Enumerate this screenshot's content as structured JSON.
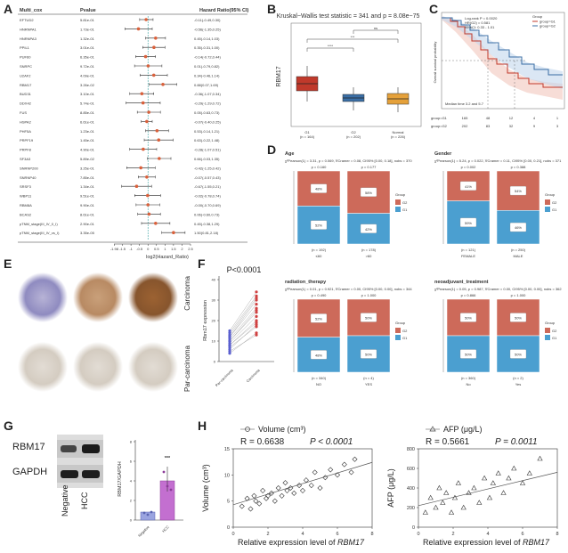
{
  "panels": {
    "A": "A",
    "B": "B",
    "C": "C",
    "D": "D",
    "E": "E",
    "F": "F",
    "G": "G",
    "H": "H"
  },
  "forest": {
    "col_gene": "Multi_cox",
    "col_p": "Pvalue",
    "col_hr": "Hazard Ratio(95% CI)",
    "xlabel": "log2(Hazard_Ratio)",
    "ticks": [
      "-1.98",
      "-1.5",
      "-1",
      "-0.5",
      "0",
      "0.5",
      "1",
      "1.5",
      "2",
      "2.5"
    ],
    "rows": [
      {
        "gene": "EFTUD2",
        "p": "5.81e-01",
        "hr": "-0.11(-0.49,0.30)"
      },
      {
        "gene": "HNRNPA1",
        "p": "1.73e-01",
        "hr": "-0.56(-1.35,0.25)"
      },
      {
        "gene": "HNRNPA3",
        "p": "1.32e-01",
        "hr": "0.45(-0.14,1.03)"
      },
      {
        "gene": "PPIL1",
        "p": "3.01e-01",
        "hr": "0.35(-0.31,1.00)"
      },
      {
        "gene": "PUF60",
        "p": "6.35e-01",
        "hr": "-0.14(-0.72,0.44)"
      },
      {
        "gene": "SNRPC",
        "p": "9.72e-01",
        "hr": "0.01(-0.79,0.82)"
      },
      {
        "gene": "U2AF2",
        "p": "4.09e-01",
        "hr": "0.34(-0.46,1.14)"
      },
      {
        "gene": "RBM17",
        "p": "3.26e-02",
        "hr": "0.88(0.07,1.69)"
      },
      {
        "gene": "BUD31",
        "p": "3.10e-01",
        "hr": "-0.36(-1.07,0.34)"
      },
      {
        "gene": "DDX42",
        "p": "5.74e-01",
        "hr": "-0.29(-1.29,0.72)"
      },
      {
        "gene": "FUS",
        "p": "8.85e-01",
        "hr": "0.05(-0.63,0.73)"
      },
      {
        "gene": "HSPA2",
        "p": "6.61e-01",
        "hr": "-0.07(-0.40,0.25)"
      },
      {
        "gene": "PHF5A",
        "p": "1.23e-01",
        "hr": "0.53(-0.14,1.21)"
      },
      {
        "gene": "PRPF19",
        "p": "1.45e-01",
        "hr": "0.63(-0.22,1.48)"
      },
      {
        "gene": "PRPF8",
        "p": "4.90e-01",
        "hr": "-0.28(-1.07,0.51)"
      },
      {
        "gene": "SF3A3",
        "p": "5.89e-02",
        "hr": "0.66(-0.03,1.35)"
      },
      {
        "gene": "SNRNP200",
        "p": "3.25e-01",
        "hr": "-0.42(-1.25,0.42)"
      },
      {
        "gene": "SNRNP40",
        "p": "7.85e-01",
        "hr": "-0.07(-0.57,0.43)"
      },
      {
        "gene": "SRSF3",
        "p": "1.34e-01",
        "hr": "-0.67(-1.55,0.21)"
      },
      {
        "gene": "WBP11",
        "p": "9.51e-01",
        "hr": "-0.02(-0.78,0.74)"
      },
      {
        "gene": "RBM8A",
        "p": "9.90e-01",
        "hr": "-0.00(-0.70,0.69)"
      },
      {
        "gene": "BCAS2",
        "p": "8.61e-01",
        "hr": "0.06(-0.60,0.73)"
      },
      {
        "gene": "pTNM_stage(III_IV_0_I)",
        "p": "2.90e-01",
        "hr": "0.45(-0.38,1.29)"
      },
      {
        "gene": "pTNM_stage(III_IV_vs_I)",
        "p": "3.35e-05",
        "hr": "1.50(0.81,2.18)"
      }
    ]
  },
  "kruskal": {
    "title": "Kruskal−Wallis test statistic = 341 and p = 8.08e−75",
    "ylabel": "RBM17",
    "groups": [
      "G1\n(n = 164)",
      "G2\n(n = 202)",
      "Normal\n(n = 226)"
    ],
    "group_names": [
      "G1",
      "G2",
      "Normal"
    ],
    "group_ns": [
      "(n = 164)",
      "(n = 202)",
      "(n = 226)"
    ],
    "sig": [
      "****",
      "***",
      "ns"
    ],
    "colors": [
      "#c0392b",
      "#3a6ea5",
      "#e5a13a"
    ]
  },
  "survival": {
    "ylabel": "Overall survival probability",
    "legend_title": "Group",
    "legend_items": [
      "group=G1",
      "group=G2"
    ],
    "stats": [
      "Log-rank P = 0.0020",
      "HR(G2) = 0.581",
      "95%CI: 0.33 - 1.01"
    ],
    "median_note": "Median time 3.2 and 5.7",
    "risk_rows": [
      "group=G1",
      "group=G2"
    ],
    "risk_g1": [
      "165",
      "48",
      "12",
      "4",
      "1"
    ],
    "risk_g2": [
      "202",
      "83",
      "32",
      "9",
      "3"
    ]
  },
  "stacked": [
    {
      "title": "Age",
      "stat": "χ²Pearson(1) = 3.31, p = 0.069, V̂Cramer = 0.08, CI95% [0.00, 0.18], nobs = 370",
      "pvals": [
        "p = 0.160",
        "p = 0.177"
      ],
      "bars": [
        {
          "g2": "48%",
          "g1": "52%",
          "n": "(n = 192)",
          "x": "≤60"
        },
        {
          "g2": "58%",
          "g1": "42%",
          "n": "(n = 178)",
          "x": ">60"
        }
      ]
    },
    {
      "title": "Gender",
      "stat": "χ²Pearson(1) = 5.24, p = 0.022, V̂Cramer = 0.11, CI95% [0.00, 0.21], nobs = 371",
      "pvals": [
        "p = 0.002",
        "p = 0.388"
      ],
      "bars": [
        {
          "g2": "41%",
          "g1": "59%",
          "n": "(n = 121)",
          "x": "FEMALE"
        },
        {
          "g2": "54%",
          "g1": "46%",
          "n": "(n = 250)",
          "x": "MALE"
        }
      ]
    },
    {
      "title": "radiation_therapy",
      "stat": "χ²Pearson(1) = 0.01, p = 0.921, V̂Cramer = 0.00, CI95% [0.00, 0.00], nobs = 344",
      "pvals": [
        "p = 0.490",
        "p = 1.000"
      ],
      "bars": [
        {
          "g2": "52%",
          "g1": "48%",
          "n": "(n = 340)",
          "x": "NO"
        },
        {
          "g2": "50%",
          "g1": "50%",
          "n": "(n = 4)",
          "x": "YES"
        }
      ]
    },
    {
      "title": "neoadjuvant_treatment",
      "stat": "χ²Pearson(1) = 0.05, p = 0.987, V̂Cramer = 0.00, CI95% [0.00, 0.00], nobs = 362",
      "pvals": [
        "p = 0.866",
        "p = 1.000"
      ],
      "bars": [
        {
          "g2": "50%",
          "g1": "50%",
          "n": "(n = 360)",
          "x": "No"
        },
        {
          "g2": "50%",
          "g1": "50%",
          "n": "(n = 2)",
          "x": "Yes"
        }
      ]
    }
  ],
  "stacked_legend": {
    "title": "Group",
    "items": [
      "G2",
      "G1"
    ],
    "colors": [
      "#cd6a5a",
      "#4b9fd0"
    ]
  },
  "tissue": {
    "row1": "Carcinoma",
    "row2": "Par-carcinoma"
  },
  "paired": {
    "pval": "P<0.0001",
    "ylabel": "Rbm17 expression",
    "xlabels": [
      "Par-carcinoma",
      "Carcinoma"
    ],
    "yticks": [
      "0",
      "10",
      "20",
      "30",
      "40"
    ]
  },
  "blot": {
    "bands": [
      "RBM17",
      "GAPDH"
    ],
    "lanes": [
      "Negative",
      "HCC"
    ],
    "bar_ylabel": "RBM17/GAPDH",
    "bar_ticks": [
      "0",
      "2",
      "4",
      "6",
      "8"
    ],
    "bar_x": [
      "Negative",
      "HCC"
    ],
    "sig": "***"
  },
  "chart_data": [
    {
      "type": "scatter",
      "title": "Volume (cm³)",
      "legend": "Volume (cm³)",
      "stat_r": "R = 0.6638",
      "stat_p": "P < 0.0001",
      "xlabel": "Relative expression level of RBM17",
      "xlabel_plain": "Relative expression level of ",
      "xlabel_italic": "RBM17",
      "ylabel": "Volume (cm³)",
      "xlim": [
        0,
        8
      ],
      "ylim": [
        0,
        15
      ],
      "xticks": [
        0,
        2,
        4,
        6,
        8
      ],
      "yticks": [
        0,
        5,
        10,
        15
      ],
      "x": [
        0.5,
        0.8,
        1.0,
        1.2,
        1.3,
        1.5,
        1.7,
        1.9,
        2.0,
        2.2,
        2.4,
        2.6,
        2.8,
        3.0,
        3.1,
        3.3,
        3.5,
        3.8,
        4.0,
        4.2,
        4.5,
        4.7,
        5.0,
        5.3,
        5.6,
        6.0,
        6.4,
        6.8,
        7.0
      ],
      "y": [
        4.0,
        5.5,
        3.5,
        6.0,
        5.0,
        4.5,
        7.0,
        5.5,
        6.0,
        6.5,
        5.0,
        7.5,
        6.0,
        8.5,
        7.0,
        7.5,
        6.5,
        8.0,
        7.0,
        9.0,
        8.0,
        10.5,
        7.5,
        9.5,
        11.0,
        10.0,
        12.0,
        10.5,
        13.0
      ],
      "fit": [
        [
          0,
          4.3
        ],
        [
          8,
          12.4
        ]
      ]
    },
    {
      "type": "scatter",
      "title": "AFP (μg/L)",
      "legend": "AFP (μg/L)",
      "stat_r": "R = 0.5661",
      "stat_p": "P = 0.0011",
      "xlabel": "Relative expression level of RBM17",
      "xlabel_plain": "Relative expression level of ",
      "xlabel_italic": "RBM17",
      "ylabel": "AFP (μg/L)",
      "xlim": [
        0,
        8
      ],
      "ylim": [
        0,
        800
      ],
      "xticks": [
        0,
        2,
        4,
        6,
        8
      ],
      "yticks": [
        0,
        200,
        400,
        600,
        800
      ],
      "x": [
        0.4,
        0.7,
        1.0,
        1.2,
        1.4,
        1.6,
        1.9,
        2.1,
        2.3,
        2.6,
        2.9,
        3.2,
        3.5,
        3.8,
        4.1,
        4.3,
        4.6,
        4.9,
        5.2,
        5.5,
        6.0,
        6.4,
        7.0
      ],
      "y": [
        150,
        300,
        200,
        400,
        250,
        350,
        150,
        300,
        450,
        200,
        350,
        400,
        250,
        500,
        300,
        450,
        550,
        350,
        500,
        600,
        450,
        550,
        700
      ],
      "fit": [
        [
          0,
          220
        ],
        [
          8,
          560
        ]
      ]
    }
  ]
}
